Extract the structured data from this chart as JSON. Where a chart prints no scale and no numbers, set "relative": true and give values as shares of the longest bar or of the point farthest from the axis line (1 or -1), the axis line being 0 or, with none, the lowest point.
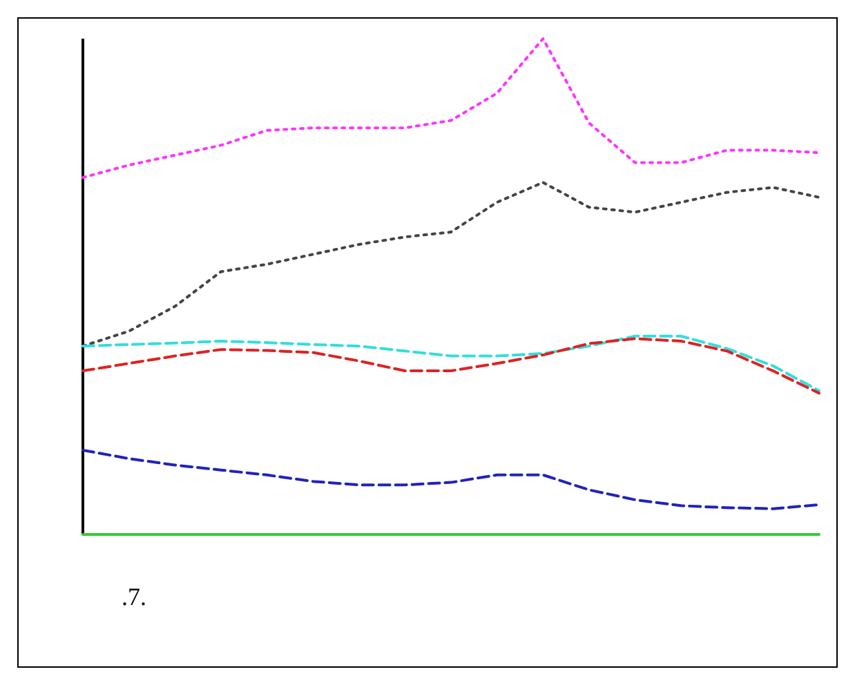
{
  "chart_data": {
    "type": "line",
    "relative": true,
    "categories": [
      null,
      null,
      null,
      null,
      null,
      null,
      null,
      null,
      null,
      null,
      null,
      null,
      null,
      null,
      null,
      null,
      null
    ],
    "marker": "none",
    "annotations": [
      ".7."
    ],
    "series": [
      {
        "color": "#ff33ff",
        "line_style": "dotted",
        "values": [
          0.72,
          0.745,
          0.765,
          0.785,
          0.815,
          0.82,
          0.82,
          0.82,
          0.835,
          0.89,
          1,
          0.83,
          0.75,
          0.75,
          0.775,
          0.775,
          0.77
        ]
      },
      {
        "color": "#444444",
        "line_style": "dotted",
        "values": [
          0.38,
          0.41,
          0.46,
          0.53,
          0.545,
          0.565,
          0.585,
          0.6,
          0.61,
          0.67,
          0.71,
          0.66,
          0.65,
          0.67,
          0.69,
          0.7,
          0.68
        ]
      },
      {
        "color": "#33dddd",
        "line_style": "dashed",
        "values": [
          0.38,
          0.383,
          0.386,
          0.39,
          0.387,
          0.383,
          0.38,
          0.37,
          0.36,
          0.36,
          0.365,
          0.38,
          0.4,
          0.4,
          0.375,
          0.34,
          0.29
        ]
      },
      {
        "color": "#dd2222",
        "line_style": "dashed",
        "values": [
          0.33,
          0.345,
          0.36,
          0.373,
          0.371,
          0.367,
          0.35,
          0.33,
          0.33,
          0.345,
          0.362,
          0.385,
          0.395,
          0.39,
          0.37,
          0.33,
          0.285
        ]
      },
      {
        "color": "#2222bb",
        "line_style": "dashed",
        "values": [
          0.17,
          0.153,
          0.14,
          0.13,
          0.12,
          0.107,
          0.1,
          0.1,
          0.105,
          0.12,
          0.12,
          0.09,
          0.07,
          0.058,
          0.054,
          0.052,
          0.06
        ]
      },
      {
        "color": "#33cc33",
        "line_style": "solid",
        "values": [
          0,
          0,
          0,
          0,
          0,
          0,
          0,
          0,
          0,
          0,
          0,
          0,
          0,
          0,
          0,
          0,
          0
        ]
      }
    ]
  }
}
